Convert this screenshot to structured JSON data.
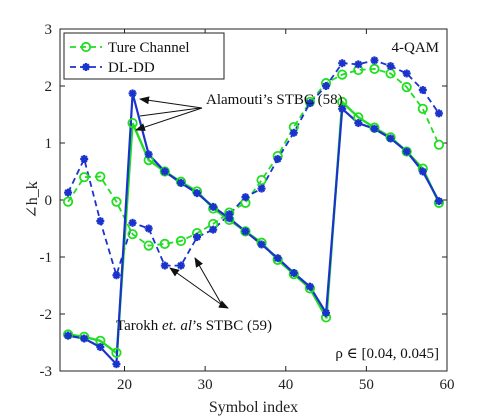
{
  "chart_data": {
    "type": "line",
    "xlabel": "Symbol index",
    "ylabel": "∠h_k",
    "xlim": [
      12,
      60
    ],
    "ylim": [
      -3,
      3
    ],
    "xticks": [
      20,
      30,
      40,
      50,
      60
    ],
    "yticks": [
      -3,
      -2,
      -1,
      0,
      1,
      2,
      3
    ],
    "grid": false,
    "legend_position": "top-left",
    "colors": {
      "true_channel": "#22dd22",
      "dl_dd": "#1a33cc",
      "solid_line": "#1a33cc"
    },
    "series": [
      {
        "name": "Ture Channel",
        "style": "dashed-circle",
        "x": [
          13,
          15,
          17,
          19,
          21,
          23,
          25,
          27,
          29,
          31,
          33,
          35,
          37,
          39,
          41,
          43,
          45,
          47,
          49,
          51,
          53,
          55,
          57,
          59
        ],
        "y": [
          -0.03,
          0.4,
          0.41,
          -0.03,
          -0.6,
          -0.8,
          -0.77,
          -0.72,
          -0.58,
          -0.42,
          -0.22,
          -0.05,
          0.35,
          0.77,
          1.28,
          1.72,
          2.05,
          2.2,
          2.28,
          2.3,
          2.22,
          1.98,
          1.6,
          0.97
        ]
      },
      {
        "name": "DL-DD",
        "style": "dashed-star",
        "x": [
          13,
          15,
          17,
          19,
          21,
          23,
          25,
          27,
          29,
          31,
          33,
          35,
          37,
          39,
          41,
          43,
          45,
          47,
          49,
          51,
          53,
          55,
          57,
          59
        ],
        "y": [
          0.13,
          0.72,
          -0.37,
          -1.32,
          -0.4,
          -0.5,
          -1.15,
          -1.15,
          -0.65,
          -0.52,
          -0.25,
          0.05,
          0.2,
          0.72,
          1.18,
          1.7,
          2.0,
          2.4,
          2.38,
          2.45,
          2.35,
          2.22,
          1.93,
          1.52
        ]
      },
      {
        "style": "solid",
        "x": [
          13,
          15,
          17,
          19,
          19.05,
          21,
          23,
          25,
          27,
          29,
          31,
          33,
          35,
          37,
          39,
          41,
          43,
          45,
          45.05,
          47,
          49,
          51,
          53,
          55,
          57,
          59
        ],
        "y": [
          -2.36,
          -2.4,
          -2.47,
          -2.68,
          -2.68,
          1.35,
          0.7,
          0.5,
          0.32,
          0.15,
          -0.15,
          -0.35,
          -0.55,
          -0.75,
          -1.05,
          -1.3,
          -1.55,
          -2.06,
          -2.06,
          1.72,
          1.45,
          1.27,
          1.1,
          0.85,
          0.55,
          -0.05
        ]
      },
      {
        "style": "solid-star",
        "x": [
          13,
          15,
          17,
          19,
          21,
          23,
          25,
          27,
          29,
          31,
          33,
          35,
          37,
          39,
          41,
          43,
          45,
          47,
          49,
          51,
          53,
          55,
          57,
          59
        ],
        "y": [
          -2.38,
          -2.43,
          -2.58,
          -2.88,
          1.87,
          0.8,
          0.5,
          0.3,
          0.12,
          -0.12,
          -0.32,
          -0.55,
          -0.78,
          -1.02,
          -1.28,
          -1.52,
          -1.98,
          1.6,
          1.35,
          1.25,
          1.08,
          0.85,
          0.5,
          -0.02
        ]
      }
    ],
    "annotations": [
      {
        "text_parts": [
          "Alamouti’s STBC (58)"
        ],
        "box_label": "4-QAM"
      },
      {
        "text_parts": [
          "Tarokh ",
          "et. al",
          "’s STBC (59)"
        ]
      }
    ],
    "box_label": "4-QAM",
    "rho_label": "ρ ∈ [0.04, 0.045]"
  }
}
